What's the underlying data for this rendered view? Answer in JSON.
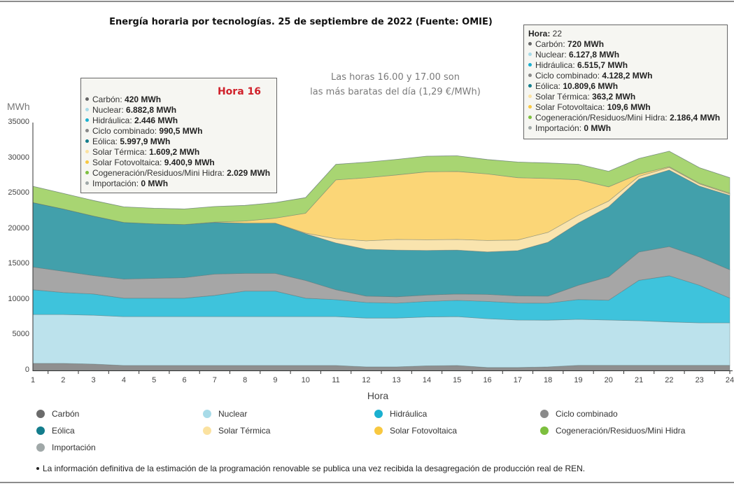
{
  "page": {
    "title": "Energía horaria por tecnologías. 25 de septiembre de 2022 (Fuente: OMIE)",
    "annotation_line1": "Las horas 16.00 y 17.00 son",
    "annotation_line2": "las más baratas del día (1,29 €/MWh)",
    "footnote": "La información definitiva de la estimación de la programación renovable se publica una vez recibida la desagregación de producción real de REN."
  },
  "tooltip_hour16": {
    "title": "Hora 16",
    "rows": [
      {
        "label": "Carbón: ",
        "value": "420 MWh",
        "color": "#666666"
      },
      {
        "label": "Nuclear: ",
        "value": "6.882,8 MWh",
        "color": "#a8dbe8"
      },
      {
        "label": "Hidráulica: ",
        "value": "2.446 MWh",
        "color": "#1ab0d0"
      },
      {
        "label": "Ciclo combinado: ",
        "value": "990,5 MWh",
        "color": "#888888"
      },
      {
        "label": "Eólica: ",
        "value": "5.997,9 MWh",
        "color": "#137d8c"
      },
      {
        "label": "Solar Térmica: ",
        "value": "1.609,2 MWh",
        "color": "#fbe2a0"
      },
      {
        "label": "Solar Fotovoltaica: ",
        "value": "9.400,9 MWh",
        "color": "#f8c840"
      },
      {
        "label": "Cogeneración/Residuos/Mini Hidra: ",
        "value": "2.029 MWh",
        "color": "#7dbf3e"
      },
      {
        "label": "Importación: ",
        "value": "0 MWh",
        "color": "#a0a8a8"
      }
    ]
  },
  "tooltip_hour22": {
    "title_label": "Hora:",
    "title_value": " 22",
    "rows": [
      {
        "label": "Carbón: ",
        "value": "720 MWh",
        "color": "#666666"
      },
      {
        "label": "Nuclear: ",
        "value": "6.127,8 MWh",
        "color": "#a8dbe8"
      },
      {
        "label": "Hidráulica: ",
        "value": "6.515,7 MWh",
        "color": "#1ab0d0"
      },
      {
        "label": "Ciclo combinado: ",
        "value": "4.128,2 MWh",
        "color": "#888888"
      },
      {
        "label": "Eólica: ",
        "value": "10.809,6 MWh",
        "color": "#137d8c"
      },
      {
        "label": "Solar Térmica: ",
        "value": "363,2 MWh",
        "color": "#fbe2a0"
      },
      {
        "label": "Solar Fotovoltaica: ",
        "value": "109,6 MWh",
        "color": "#f8c840"
      },
      {
        "label": "Cogeneración/Residuos/Mini Hidra: ",
        "value": "2.186,4 MWh",
        "color": "#7dbf3e"
      },
      {
        "label": "Importación: ",
        "value": "0 MWh",
        "color": "#a0a8a8"
      }
    ]
  },
  "legend": [
    {
      "label": "Carbón",
      "color": "#6b6b6b"
    },
    {
      "label": "Nuclear",
      "color": "#a8dbe8"
    },
    {
      "label": "Hidráulica",
      "color": "#1ab0d0"
    },
    {
      "label": "Ciclo combinado",
      "color": "#8a8a8a"
    },
    {
      "label": "Eólica",
      "color": "#137d8c"
    },
    {
      "label": "Solar Térmica",
      "color": "#fbe2a0"
    },
    {
      "label": "Solar Fotovoltaica",
      "color": "#f8c840"
    },
    {
      "label": "Cogeneración/Residuos/Mini Hidra",
      "color": "#7dbf3e"
    },
    {
      "label": "Importación",
      "color": "#a0a8a8"
    }
  ],
  "chart_data": {
    "type": "area",
    "stacked": true,
    "title": "Energía horaria por tecnologías. 25 de septiembre de 2022 (Fuente: OMIE)",
    "xlabel": "Hora",
    "ylabel": "MWh",
    "ylim": [
      0,
      35000
    ],
    "yticks": [
      0,
      5000,
      10000,
      15000,
      20000,
      25000,
      30000,
      35000
    ],
    "x": [
      1,
      2,
      3,
      4,
      5,
      6,
      7,
      8,
      9,
      10,
      11,
      12,
      13,
      14,
      15,
      16,
      17,
      18,
      19,
      20,
      21,
      22,
      23,
      24
    ],
    "grid": false,
    "legend_position": "bottom",
    "series": [
      {
        "name": "Carbón",
        "fill": "#8f8f8f",
        "values": [
          1000,
          1000,
          900,
          700,
          700,
          700,
          700,
          700,
          700,
          700,
          700,
          500,
          500,
          650,
          700,
          420,
          420,
          500,
          720,
          720,
          720,
          720,
          720,
          720
        ]
      },
      {
        "name": "Nuclear",
        "fill": "#bce2ec",
        "values": [
          6900,
          6900,
          6900,
          6900,
          6900,
          6900,
          6900,
          6900,
          6900,
          6900,
          6900,
          6900,
          6900,
          6900,
          6900,
          6882.8,
          6700,
          6600,
          6500,
          6400,
          6300,
          6127.8,
          6000,
          6000
        ]
      },
      {
        "name": "Hidráulica",
        "fill": "#3ec3dc",
        "values": [
          3500,
          3100,
          3000,
          2600,
          2600,
          2600,
          3000,
          3600,
          3600,
          2600,
          2400,
          2200,
          2100,
          2200,
          2300,
          2446,
          2400,
          2400,
          2800,
          2800,
          5700,
          6515.7,
          5300,
          3500
        ]
      },
      {
        "name": "Ciclo combinado",
        "fill": "#a6a6a6",
        "values": [
          3200,
          3000,
          2600,
          2700,
          2800,
          2900,
          3000,
          2500,
          2500,
          2500,
          1400,
          900,
          900,
          900,
          900,
          990.5,
          1000,
          1000,
          2000,
          3300,
          4000,
          4128.2,
          4000,
          4000
        ]
      },
      {
        "name": "Eólica",
        "fill": "#42a0ab",
        "values": [
          9100,
          8800,
          8400,
          8000,
          7700,
          7500,
          7300,
          7100,
          7100,
          6600,
          6600,
          6600,
          6600,
          6300,
          6200,
          5997.9,
          6400,
          7600,
          8800,
          9900,
          10300,
          10809.6,
          10000,
          10500
        ]
      },
      {
        "name": "Solar Térmica",
        "fill": "#f9e4ae",
        "values": [
          0,
          0,
          0,
          0,
          0,
          0,
          0,
          0,
          0,
          100,
          600,
          1200,
          1500,
          1500,
          1500,
          1609.2,
          1500,
          1400,
          1100,
          800,
          400,
          363.2,
          300,
          200
        ]
      },
      {
        "name": "Solar Fotovoltaica",
        "fill": "#fbd677",
        "values": [
          0,
          0,
          0,
          0,
          0,
          0,
          50,
          300,
          700,
          2800,
          8300,
          8900,
          9100,
          9600,
          9600,
          9400.9,
          8800,
          7600,
          5000,
          2000,
          300,
          109.6,
          100,
          100
        ]
      },
      {
        "name": "Cogeneración/Residuos/Mini Hidra",
        "fill": "#a8d572",
        "values": [
          2300,
          2200,
          2200,
          2200,
          2200,
          2200,
          2200,
          2200,
          2200,
          2200,
          2200,
          2200,
          2200,
          2200,
          2200,
          2029,
          2200,
          2200,
          2200,
          2200,
          2200,
          2186.4,
          2200,
          2200
        ]
      },
      {
        "name": "Importación",
        "fill": "#a0a8a8",
        "values": [
          0,
          0,
          0,
          0,
          0,
          0,
          0,
          0,
          0,
          0,
          0,
          0,
          0,
          0,
          0,
          0,
          0,
          0,
          0,
          0,
          0,
          0,
          0,
          0
        ]
      }
    ]
  }
}
